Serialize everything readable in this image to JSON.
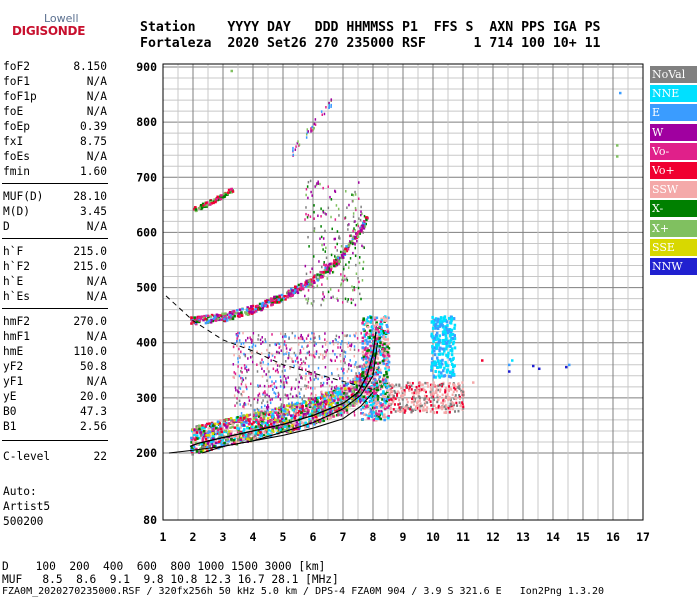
{
  "logo": {
    "top": "Lowell",
    "bottom": "DIGISONDE"
  },
  "header": {
    "line1": "Station    YYYY DAY   DDD HHMMSS P1  FFS S  AXN PPS IGA PS",
    "line2": "Fortaleza  2020 Set26 270 235000 RSF      1 714 100 10+ 11"
  },
  "params": [
    {
      "name": "foF2",
      "value": "8.150"
    },
    {
      "name": "foF1",
      "value": "N/A"
    },
    {
      "name": "foF1p",
      "value": "N/A"
    },
    {
      "name": "foE",
      "value": "N/A"
    },
    {
      "name": "foEp",
      "value": "0.39"
    },
    {
      "name": "fxI",
      "value": "8.75"
    },
    {
      "name": "foEs",
      "value": "N/A"
    },
    {
      "name": "fmin",
      "value": "1.60"
    },
    {
      "name": "MUF(D)",
      "value": "28.10"
    },
    {
      "name": "M(D)",
      "value": "3.45"
    },
    {
      "name": "D",
      "value": "N/A"
    },
    {
      "name": "h`F",
      "value": "215.0"
    },
    {
      "name": "h`F2",
      "value": "215.0"
    },
    {
      "name": "h`E",
      "value": "N/A"
    },
    {
      "name": "h`Es",
      "value": "N/A"
    },
    {
      "name": "hmF2",
      "value": "270.0"
    },
    {
      "name": "hmF1",
      "value": "N/A"
    },
    {
      "name": "hmE",
      "value": "110.0"
    },
    {
      "name": "yF2",
      "value": "50.8"
    },
    {
      "name": "yF1",
      "value": "N/A"
    },
    {
      "name": "yE",
      "value": "20.0"
    },
    {
      "name": "B0",
      "value": "47.3"
    },
    {
      "name": "B1",
      "value": "2.56"
    },
    {
      "name": "C-level",
      "value": "22"
    }
  ],
  "notes": {
    "auto": "Auto:",
    "artist": "Artist5",
    "code": "500200"
  },
  "legend": [
    {
      "label": "NoVal",
      "color": "#808080"
    },
    {
      "label": "NNE",
      "color": "#00e0ff"
    },
    {
      "label": "E",
      "color": "#3a9cff"
    },
    {
      "label": "W",
      "color": "#a000a0"
    },
    {
      "label": "Vo-",
      "color": "#e0208a"
    },
    {
      "label": "Vo+",
      "color": "#f00030"
    },
    {
      "label": "SSW",
      "color": "#f4a9a9"
    },
    {
      "label": "X-",
      "color": "#008000"
    },
    {
      "label": "X+",
      "color": "#80c060"
    },
    {
      "label": "SSE",
      "color": "#d8d800"
    },
    {
      "label": "NNW",
      "color": "#2020d0"
    }
  ],
  "footer": {
    "d_line": "D    100  200  400  600  800 1000 1500 3000 [km]",
    "muf_line": "MUF   8.5  8.6  9.1  9.8 10.8 12.3 16.7 28.1 [MHz]",
    "file_line": "FZA0M_2020270235000.RSF / 320fx256h 50 kHz 5.0 km / DPS-4 FZA0M 904 / 3.9 S 321.6 E   Ion2Png 1.3.20"
  },
  "chart_data": {
    "type": "scatter",
    "x_ticks": [
      1,
      2,
      3,
      4,
      5,
      6,
      7,
      8,
      9,
      10,
      11,
      12,
      13,
      14,
      15,
      16,
      17
    ],
    "y_ticks": [
      80,
      200,
      300,
      400,
      500,
      600,
      700,
      800,
      900
    ],
    "xlim": [
      1,
      17
    ],
    "ylim_display": [
      80,
      900
    ],
    "grid": true,
    "legend_position": "right",
    "traces": [
      {
        "name": "O-trace",
        "x": [
          1.9,
          2.2,
          3.0,
          4.0,
          5.0,
          6.0,
          7.0,
          7.5,
          7.8,
          8.0,
          8.1
        ],
        "y": [
          212,
          218,
          228,
          240,
          252,
          268,
          290,
          310,
          340,
          380,
          420
        ]
      },
      {
        "name": "X-trace",
        "x": [
          2.3,
          3.0,
          4.0,
          5.0,
          6.0,
          7.0,
          7.6,
          8.0
        ],
        "y": [
          200,
          212,
          222,
          232,
          245,
          262,
          285,
          310
        ]
      },
      {
        "name": "Profile",
        "x": [
          1.2,
          2.0,
          3.0,
          4.0,
          5.0,
          6.0,
          7.0,
          7.6,
          8.0,
          8.15
        ],
        "y": [
          200,
          205,
          212,
          222,
          238,
          255,
          280,
          305,
          340,
          400
        ]
      },
      {
        "name": "MUF-curve",
        "x": [
          1.1,
          2.0,
          3.0,
          4.0,
          5.0,
          6.0,
          7.0,
          8.0
        ],
        "y": [
          485,
          440,
          405,
          385,
          360,
          345,
          330,
          315
        ]
      },
      {
        "name": "Multiple-hop",
        "x": [
          1.9,
          3.0,
          4.0,
          5.0,
          6.0,
          6.8,
          7.5,
          8.0
        ],
        "y": [
          440,
          447,
          462,
          485,
          515,
          550,
          600,
          650
        ]
      },
      {
        "name": "Upper-hop",
        "x": [
          2.0,
          2.5,
          3.0,
          3.3
        ],
        "y": [
          643,
          655,
          670,
          680
        ]
      }
    ]
  }
}
